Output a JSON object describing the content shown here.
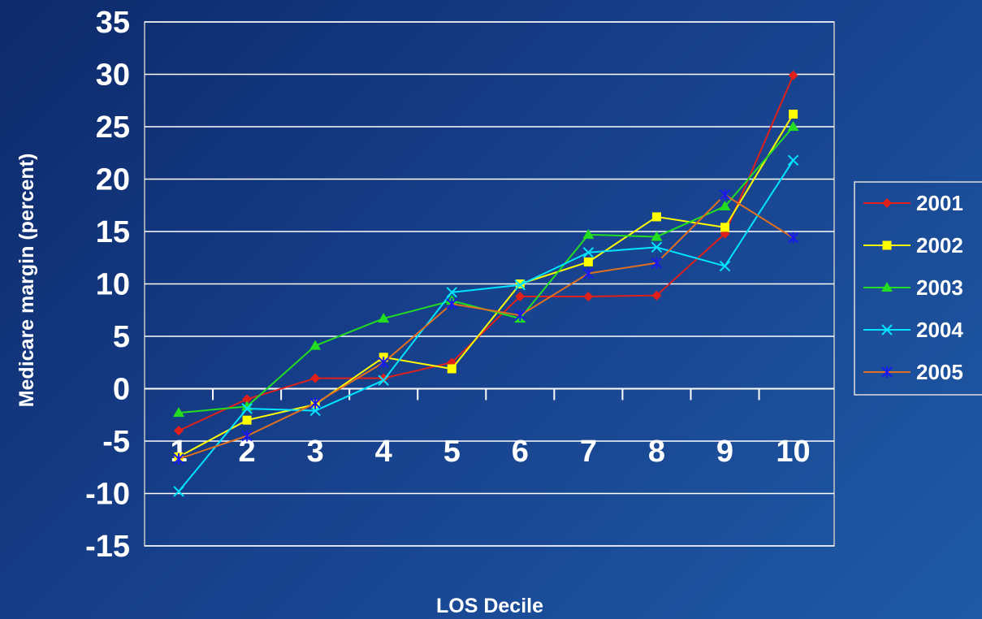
{
  "chart_data": {
    "type": "line",
    "xlabel": "LOS Decile",
    "ylabel": "Medicare margin (percent)",
    "ylim": [
      -15,
      35
    ],
    "yticks": [
      -15,
      -10,
      -5,
      0,
      5,
      10,
      15,
      20,
      25,
      30,
      35
    ],
    "categories": [
      "1",
      "2",
      "3",
      "4",
      "5",
      "6",
      "7",
      "8",
      "9",
      "10"
    ],
    "grid": "horizontal",
    "legend_position": "right",
    "series": [
      {
        "name": "2001",
        "color": "#e0201a",
        "marker": "diamond",
        "values": [
          -4.0,
          -1.0,
          1.0,
          1.0,
          2.5,
          8.8,
          8.8,
          8.9,
          14.8,
          29.9
        ]
      },
      {
        "name": "2002",
        "color": "#ffff00",
        "marker": "square",
        "values": [
          -6.5,
          -3.0,
          -1.5,
          3.0,
          1.9,
          10.0,
          12.1,
          16.4,
          15.4,
          26.2
        ]
      },
      {
        "name": "2003",
        "color": "#22dd22",
        "marker": "triangle",
        "values": [
          -2.3,
          -1.7,
          4.1,
          6.7,
          8.4,
          6.7,
          14.7,
          14.5,
          17.4,
          25.0
        ]
      },
      {
        "name": "2004",
        "color": "#00e5ff",
        "marker": "x",
        "values": [
          -9.8,
          -1.9,
          -2.1,
          0.8,
          9.2,
          9.9,
          13.0,
          13.5,
          11.7,
          21.8
        ]
      },
      {
        "name": "2005",
        "color": "#e07020",
        "marker": "asterisk",
        "marker_color": "#1a1aee",
        "values": [
          -6.7,
          -4.5,
          -1.4,
          2.5,
          8.1,
          7.0,
          11.0,
          12.0,
          18.5,
          14.4
        ]
      }
    ]
  }
}
